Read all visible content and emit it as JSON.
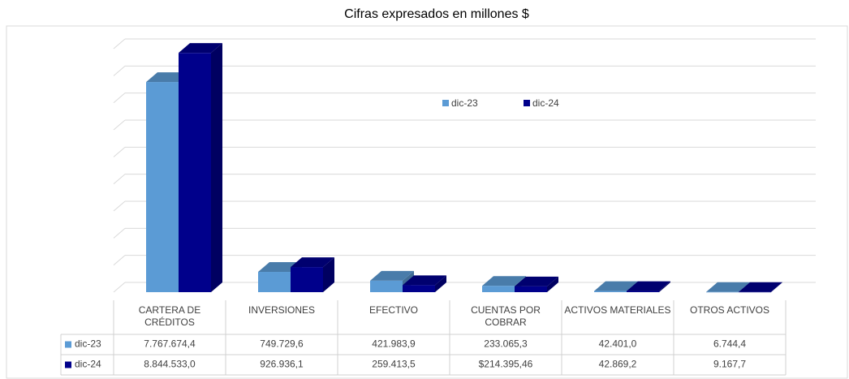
{
  "chart_data": {
    "type": "bar3d",
    "title": "Cifras expresados en millones $",
    "categories": [
      "CARTERA DE CRÉDITOS",
      "INVERSIONES",
      "EFECTIVO",
      "CUENTAS POR COBRAR",
      "ACTIVOS MATERIALES",
      "OTROS ACTIVOS"
    ],
    "series": [
      {
        "name": "dic-23",
        "color": "#5b9bd5",
        "values": [
          7767674.4,
          749729.6,
          421983.9,
          233065.3,
          42401.0,
          6744.4
        ],
        "value_labels": [
          "7.767.674,4",
          "749.729,6",
          "421.983,9",
          "233.065,3",
          "42.401,0",
          "6.744,4"
        ]
      },
      {
        "name": "dic-24",
        "color": "#00008b",
        "values": [
          8844533.0,
          926936.1,
          259413.5,
          214395.46,
          42869.2,
          9167.7
        ],
        "value_labels": [
          "8.844.533,0",
          "926.936,1",
          "259.413,5",
          "$214.395,46",
          "42.869,2",
          "9.167,7"
        ]
      }
    ],
    "ylim": [
      0,
      9000000
    ],
    "yticks": [
      0,
      1000000,
      2000000,
      3000000,
      4000000,
      5000000,
      6000000,
      7000000,
      8000000,
      9000000
    ],
    "grid": true
  }
}
